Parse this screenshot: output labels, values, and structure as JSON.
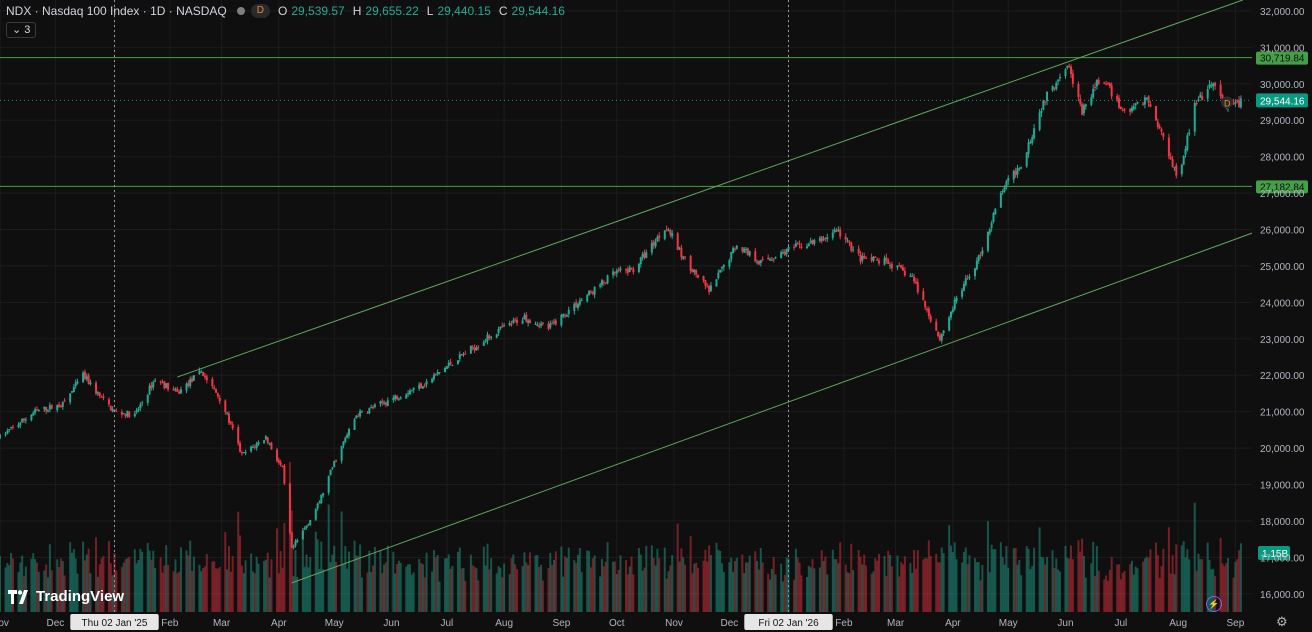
{
  "header": {
    "symbol": "NDX · Nasdaq 100 Index · 1D · NASDAQ",
    "badge": "D",
    "o_label": "O",
    "o_value": "29,539.57",
    "h_label": "H",
    "h_value": "29,655.22",
    "l_label": "L",
    "l_value": "29,440.15",
    "c_label": "C",
    "c_value": "29,544.16"
  },
  "collapse_count": "3",
  "logo_text": "TradingView",
  "colors": {
    "background": "#0f0f0f",
    "up": "#22ab94",
    "down": "#f23645",
    "trendline": "#5fa85f",
    "current_price": "#089981",
    "level": "#43a047",
    "badge": "#e08a3c"
  },
  "chart_data": {
    "type": "candlestick",
    "price_ticks": [
      "32,000.00",
      "31,000.00",
      "30,000.00",
      "29,000.00",
      "28,000.00",
      "27,000.00",
      "26,000.00",
      "25,000.00",
      "24,000.00",
      "23,000.00",
      "22,000.00",
      "21,000.00",
      "20,000.00",
      "19,000.00",
      "18,000.00",
      "17,000.00",
      "16,000.00"
    ],
    "price_tick_values": [
      32000,
      31000,
      30000,
      29000,
      28000,
      27000,
      26000,
      25000,
      24000,
      23000,
      22000,
      21000,
      20000,
      19000,
      18000,
      17000,
      16000
    ],
    "ylim": [
      15500,
      32300
    ],
    "time_labels": [
      "Nov",
      "Dec",
      "Thu 02 Jan '25",
      "Feb",
      "Mar",
      "Apr",
      "May",
      "Jun",
      "Jul",
      "Aug",
      "Sep",
      "Oct",
      "Nov",
      "Dec",
      "Fri 02 Jan '26",
      "Feb",
      "Mar",
      "Apr",
      "May",
      "Jun",
      "Jul",
      "Aug",
      "Sep"
    ],
    "time_label_highlight": [
      "Thu 02 Jan '25",
      "Fri 02 Jan '26"
    ],
    "xlim": [
      "2024-11-01",
      "2026-09-10"
    ],
    "time_label_dates": [
      "2024-11-01",
      "2024-12-01",
      "2025-01-02",
      "2025-02-01",
      "2025-03-01",
      "2025-04-01",
      "2025-05-01",
      "2025-06-01",
      "2025-07-01",
      "2025-08-01",
      "2025-09-01",
      "2025-10-01",
      "2025-11-01",
      "2025-12-01",
      "2026-01-02",
      "2026-02-01",
      "2026-03-01",
      "2026-04-01",
      "2026-05-01",
      "2026-06-01",
      "2026-07-01",
      "2026-08-01",
      "2026-09-01"
    ],
    "price_path": [
      [
        "2024-11-01",
        20300
      ],
      [
        "2024-11-20",
        21000
      ],
      [
        "2024-12-05",
        21200
      ],
      [
        "2024-12-16",
        22000
      ],
      [
        "2024-12-27",
        21300
      ],
      [
        "2025-01-02",
        21000
      ],
      [
        "2025-01-13",
        20900
      ],
      [
        "2025-01-24",
        21900
      ],
      [
        "2025-02-05",
        21500
      ],
      [
        "2025-02-18",
        22100
      ],
      [
        "2025-03-01",
        21300
      ],
      [
        "2025-03-12",
        19800
      ],
      [
        "2025-03-25",
        20300
      ],
      [
        "2025-04-03",
        19400
      ],
      [
        "2025-04-08",
        17200
      ],
      [
        "2025-04-22",
        18400
      ],
      [
        "2025-05-01",
        19600
      ],
      [
        "2025-05-13",
        20900
      ],
      [
        "2025-05-30",
        21300
      ],
      [
        "2025-06-20",
        21800
      ],
      [
        "2025-07-05",
        22400
      ],
      [
        "2025-07-28",
        23200
      ],
      [
        "2025-08-12",
        23600
      ],
      [
        "2025-08-25",
        23300
      ],
      [
        "2025-09-10",
        24000
      ],
      [
        "2025-09-30",
        24800
      ],
      [
        "2025-10-10",
        24900
      ],
      [
        "2025-10-28",
        26100
      ],
      [
        "2025-11-05",
        25300
      ],
      [
        "2025-11-20",
        24300
      ],
      [
        "2025-12-05",
        25600
      ],
      [
        "2025-12-18",
        25100
      ],
      [
        "2026-01-05",
        25500
      ],
      [
        "2026-01-20",
        25700
      ],
      [
        "2026-01-28",
        26000
      ],
      [
        "2026-02-10",
        25200
      ],
      [
        "2026-02-24",
        25100
      ],
      [
        "2026-03-10",
        24700
      ],
      [
        "2026-03-25",
        23000
      ],
      [
        "2026-04-03",
        24100
      ],
      [
        "2026-04-15",
        25200
      ],
      [
        "2026-04-28",
        27100
      ],
      [
        "2026-05-08",
        27800
      ],
      [
        "2026-05-20",
        29500
      ],
      [
        "2026-06-02",
        30600
      ],
      [
        "2026-06-10",
        29200
      ],
      [
        "2026-06-20",
        30200
      ],
      [
        "2026-07-03",
        29200
      ],
      [
        "2026-07-15",
        29600
      ],
      [
        "2026-07-25",
        28400
      ],
      [
        "2026-08-01",
        27400
      ],
      [
        "2026-08-10",
        29400
      ],
      [
        "2026-08-20",
        30000
      ],
      [
        "2026-08-27",
        29300
      ],
      [
        "2026-09-05",
        29544
      ]
    ],
    "horizontal_levels": [
      {
        "price": 30719.84,
        "label": "30,719.84"
      },
      {
        "price": 27182.84,
        "label": "27,182.84"
      }
    ],
    "current_price": {
      "value": 29544.16,
      "label": "29,544.16",
      "badge": "D"
    },
    "volume_label": "1.15B",
    "trend_lines": [
      {
        "from": [
          "2025-02-05",
          21950
        ],
        "to": [
          "2026-09-05",
          32300
        ]
      },
      {
        "from": [
          "2025-04-08",
          16300
        ],
        "to": [
          "2026-09-10",
          25900
        ]
      }
    ],
    "crosshair_dates": [
      "2025-01-02",
      "2026-01-02"
    ],
    "grid": true
  }
}
